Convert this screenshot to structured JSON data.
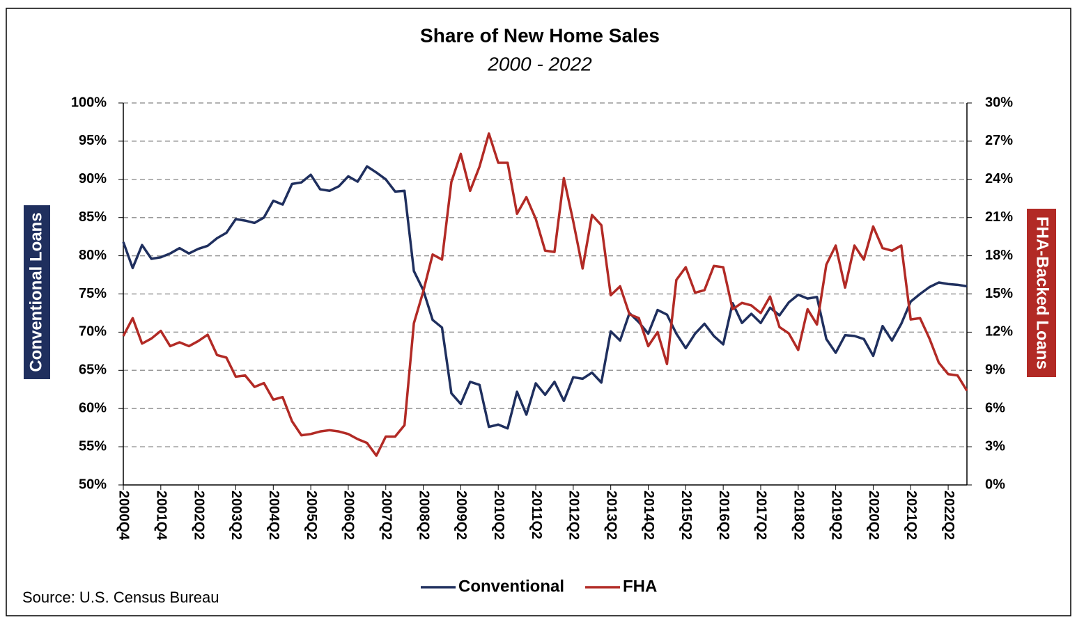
{
  "chart_data": {
    "type": "line",
    "title": "Share of New Home Sales",
    "subtitle": "2000 - 2022",
    "y_label": "Conventional Loans",
    "y2_label": "FHA-Backed Loans",
    "source": "Source: U.S. Census Bureau",
    "legend": "bottom",
    "grid": true,
    "categories": [
      "2000Q4",
      null,
      null,
      null,
      "2001Q4",
      null,
      null,
      null,
      "2002Q2",
      null,
      null,
      null,
      "2003Q2",
      null,
      null,
      null,
      "2004Q2",
      null,
      null,
      null,
      "2005Q2",
      null,
      null,
      null,
      "2006Q2",
      null,
      null,
      null,
      "2007Q2",
      null,
      null,
      null,
      "2008Q2",
      null,
      null,
      null,
      "2009Q2",
      null,
      null,
      null,
      "2010Q2",
      null,
      null,
      null,
      "2011Q2",
      null,
      null,
      null,
      "2012Q2",
      null,
      null,
      null,
      "2013Q2",
      null,
      null,
      null,
      "2014Q2",
      null,
      null,
      null,
      "2015Q2",
      null,
      null,
      null,
      "2016Q2",
      null,
      null,
      null,
      "2017Q2",
      null,
      null,
      null,
      "2018Q2",
      null,
      null,
      null,
      "2019Q2",
      null,
      null,
      null,
      "2020Q2",
      null,
      null,
      null,
      "2021Q2",
      null,
      null,
      null,
      "2022Q2",
      null,
      null
    ],
    "series": [
      {
        "name": "Conventional",
        "color": "#1f2f5e",
        "axis": "y",
        "values": [
          81.8,
          78.4,
          81.4,
          79.6,
          79.8,
          80.3,
          81.0,
          80.3,
          80.9,
          81.3,
          82.3,
          83.0,
          84.8,
          84.6,
          84.3,
          85.0,
          87.2,
          86.7,
          89.4,
          89.6,
          90.6,
          88.7,
          88.5,
          89.1,
          90.4,
          89.7,
          91.7,
          90.9,
          90.0,
          88.4,
          88.5,
          78.0,
          75.5,
          71.6,
          70.6,
          62.0,
          60.6,
          63.5,
          63.1,
          57.6,
          57.9,
          57.4,
          62.2,
          59.2,
          63.3,
          61.8,
          63.5,
          61.0,
          64.1,
          63.9,
          64.7,
          63.4,
          70.1,
          68.9,
          72.5,
          71.3,
          69.8,
          72.9,
          72.3,
          69.8,
          67.9,
          69.8,
          71.1,
          69.5,
          68.4,
          73.8,
          71.2,
          72.4,
          71.2,
          73.2,
          72.2,
          73.9,
          74.9,
          74.4,
          74.6,
          69.1,
          67.3,
          69.6,
          69.5,
          69.1,
          66.9,
          70.8,
          68.9,
          71.1,
          74.0,
          75.0,
          75.9,
          76.5,
          76.3,
          76.2,
          76.0
        ]
      },
      {
        "name": "FHA",
        "color": "#b22a25",
        "axis": "y2",
        "values": [
          11.7,
          13.1,
          11.1,
          11.5,
          12.1,
          10.9,
          11.2,
          10.9,
          11.3,
          11.8,
          10.2,
          10.0,
          8.5,
          8.6,
          7.7,
          8.0,
          6.7,
          6.9,
          5.0,
          3.9,
          4.0,
          4.2,
          4.3,
          4.2,
          4.0,
          3.6,
          3.3,
          2.3,
          3.8,
          3.8,
          4.7,
          12.7,
          15.2,
          18.1,
          17.7,
          23.8,
          26.0,
          23.1,
          25.0,
          27.6,
          25.3,
          25.3,
          21.3,
          22.6,
          20.9,
          18.4,
          18.3,
          24.1,
          20.7,
          17.0,
          21.2,
          20.4,
          14.9,
          15.6,
          13.4,
          13.1,
          10.9,
          12.0,
          9.5,
          16.1,
          17.1,
          15.1,
          15.3,
          17.2,
          17.1,
          13.8,
          14.3,
          14.1,
          13.5,
          14.8,
          12.4,
          11.9,
          10.6,
          13.8,
          12.6,
          17.3,
          18.8,
          15.5,
          18.8,
          17.7,
          20.3,
          18.6,
          18.4,
          18.8,
          13.0,
          13.1,
          11.5,
          9.6,
          8.7,
          8.6,
          7.4
        ]
      }
    ],
    "ylim": [
      50,
      100
    ],
    "yticks": [
      {
        "value": 50,
        "label": "50%"
      },
      {
        "value": 55,
        "label": "55%"
      },
      {
        "value": 60,
        "label": "60%"
      },
      {
        "value": 65,
        "label": "65%"
      },
      {
        "value": 70,
        "label": "70%"
      },
      {
        "value": 75,
        "label": "75%"
      },
      {
        "value": 80,
        "label": "80%"
      },
      {
        "value": 85,
        "label": "85%"
      },
      {
        "value": 90,
        "label": "90%"
      },
      {
        "value": 95,
        "label": "95%"
      },
      {
        "value": 100,
        "label": "100%"
      }
    ],
    "y2lim": [
      0,
      30
    ],
    "y2ticks": [
      {
        "value": 0,
        "label": "0%"
      },
      {
        "value": 3,
        "label": "3%"
      },
      {
        "value": 6,
        "label": "6%"
      },
      {
        "value": 9,
        "label": "9%"
      },
      {
        "value": 12,
        "label": "12%"
      },
      {
        "value": 15,
        "label": "15%"
      },
      {
        "value": 18,
        "label": "18%"
      },
      {
        "value": 21,
        "label": "21%"
      },
      {
        "value": 24,
        "label": "24%"
      },
      {
        "value": 27,
        "label": "27%"
      },
      {
        "value": 30,
        "label": "30%"
      }
    ]
  }
}
